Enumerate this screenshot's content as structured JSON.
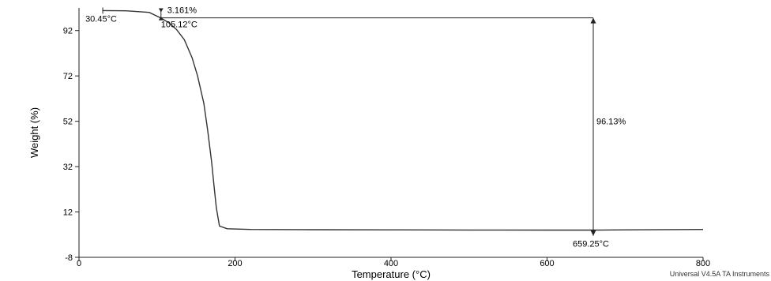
{
  "chart_data": {
    "type": "line",
    "title": "",
    "xlabel": "Temperature (°C)",
    "ylabel": "Weight (%)",
    "xlim": [
      0,
      800
    ],
    "ylim": [
      -8,
      102
    ],
    "xticks": [
      0,
      200,
      400,
      600,
      800
    ],
    "xtick_labels": [
      "0",
      "200",
      "400",
      "600",
      "800"
    ],
    "yticks": [
      -8,
      12,
      32,
      52,
      72,
      92
    ],
    "ytick_labels": [
      "-8",
      "12",
      "32",
      "52",
      "72",
      "92"
    ],
    "grid": false,
    "series": [
      {
        "color": "#333333",
        "x": [
          30,
          60,
          90,
          105,
          115,
          125,
          135,
          145,
          152,
          160,
          165,
          170,
          173,
          176,
          180,
          190,
          220,
          300,
          400,
          500,
          600,
          659,
          700,
          800
        ],
        "y": [
          100.8,
          100.7,
          100.0,
          97.5,
          95.5,
          92.5,
          88,
          80,
          72,
          60,
          48,
          34,
          24,
          14,
          5.8,
          4.6,
          4.3,
          4.2,
          4.1,
          4.05,
          4.0,
          4.0,
          4.1,
          4.3
        ]
      }
    ],
    "annotations": [
      {
        "text": "3.161%",
        "x": 105,
        "y": 100.8
      },
      {
        "text": "30.45°C",
        "x": 30.45,
        "y": 100.8
      },
      {
        "text": "105.12°C",
        "x": 105.12,
        "y": 97.6
      },
      {
        "text": "96.13%",
        "x": 659.25,
        "y": 52
      },
      {
        "text": "659.25°C",
        "x": 659.25,
        "y": 1.5
      }
    ],
    "measurements": {
      "step1_start_x": 30.45,
      "step1_end_x": 105.12,
      "step1_top_y": 100.8,
      "step1_bottom_y": 97.6,
      "step2_x": 659.25,
      "step2_top_y": 97.6,
      "step2_bottom_y": 1.5
    }
  },
  "footer": "Universal V4.5A TA Instruments"
}
